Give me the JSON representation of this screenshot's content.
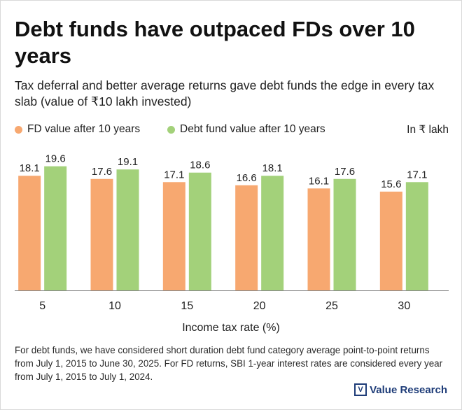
{
  "title": "Debt funds have outpaced FDs over 10 years",
  "subtitle": "Tax deferral and better average returns gave debt funds the edge in every tax slab (value of ₹10 lakh invested)",
  "unit_label": "In ₹ lakh",
  "footnote": "For debt funds, we have considered short duration debt fund category average point-to-point returns from July 1, 2015 to June 30, 2025. For FD returns, SBI 1-year interest rates are considered every year from July 1, 2015 to July 1, 2024.",
  "brand": {
    "mark": "V",
    "name": "Value Research"
  },
  "colors": {
    "fd": "#f7a870",
    "debt": "#a3d17a",
    "axis": "#888888",
    "brand": "#1e3c78"
  },
  "chart_data": {
    "type": "bar",
    "title": "Debt funds have outpaced FDs over 10 years",
    "xlabel": "Income tax rate (%)",
    "ylabel": "",
    "categories": [
      "5",
      "10",
      "15",
      "20",
      "25",
      "30"
    ],
    "series": [
      {
        "name": "FD value after 10 years",
        "color": "#f7a870",
        "values": [
          18.1,
          17.6,
          17.1,
          16.6,
          16.1,
          15.6
        ]
      },
      {
        "name": "Debt fund value after 10 years",
        "color": "#a3d17a",
        "values": [
          19.6,
          19.1,
          18.6,
          18.1,
          17.6,
          17.1
        ]
      }
    ],
    "ylim": [
      0,
      21
    ],
    "grid": false,
    "legend": "top-left"
  }
}
